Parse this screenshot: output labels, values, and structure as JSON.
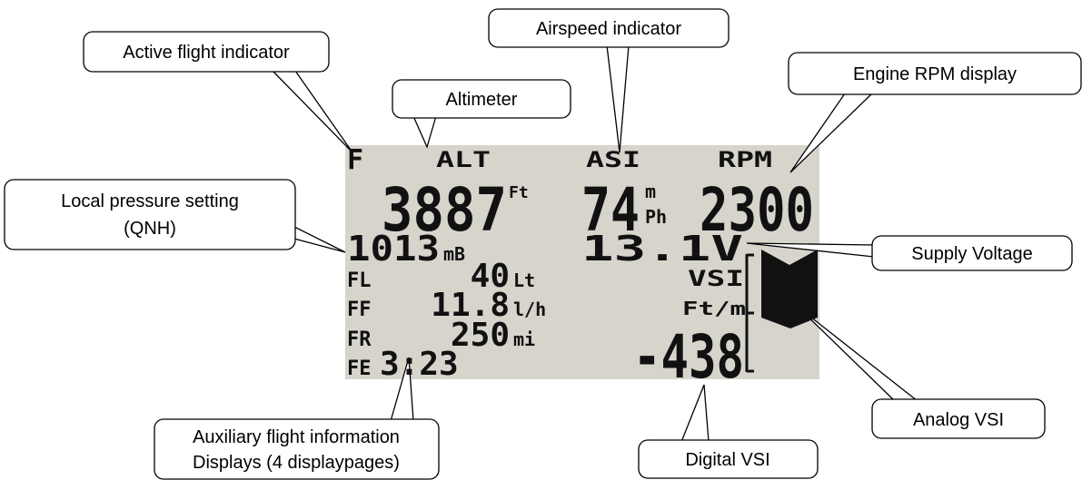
{
  "callouts": {
    "active": "Active flight indicator",
    "altimeter": "Altimeter",
    "airspeed": "Airspeed indicator",
    "rpm": "Engine RPM display",
    "qnh": [
      "Local pressure setting",
      "(QNH)"
    ],
    "voltage": "Supply Voltage",
    "analog_vsi": "Analog VSI",
    "digital_vsi": "Digital VSI",
    "aux": [
      "Auxiliary flight information",
      "Displays (4 displaypages)"
    ]
  },
  "display": {
    "flight": "F",
    "alt_label": "ALT",
    "asi_label": "ASI",
    "rpm_label": "RPM",
    "alt": "3887",
    "alt_unit": "Ft",
    "asi": "74",
    "asi_unit": [
      "m",
      "Ph"
    ],
    "rpm": "2300",
    "qnh": "1013",
    "qnh_unit": "mB",
    "voltage": "13.1V",
    "vsi_label": "VSI",
    "vsi_unit": "Ft/m",
    "vsi": "-438",
    "aux": [
      {
        "label": "FL",
        "value": "40",
        "unit": "Lt"
      },
      {
        "label": "FF",
        "value": "11.8",
        "unit": "l/h"
      },
      {
        "label": "FR",
        "value": "250",
        "unit": "mi"
      },
      {
        "label": "FE",
        "value": "3:23"
      }
    ]
  }
}
